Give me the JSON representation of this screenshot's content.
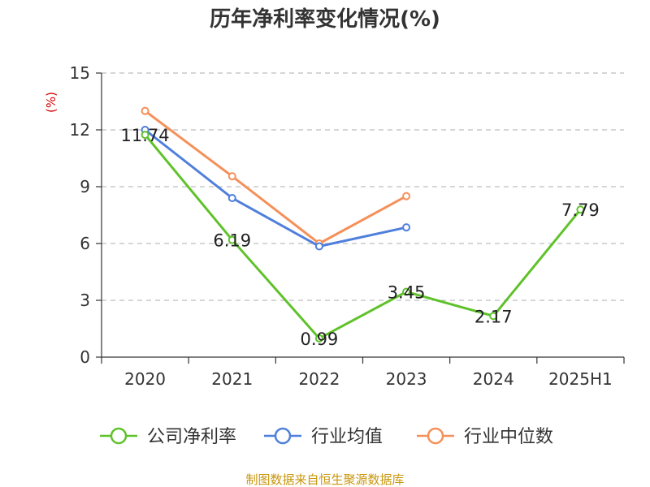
{
  "chart_data": {
    "type": "line",
    "title": "历年净利率变化情况(%)",
    "ylabel": "(%)",
    "xlabel": "",
    "categories": [
      "2020",
      "2021",
      "2022",
      "2023",
      "2024",
      "2025H1"
    ],
    "ylim": [
      0,
      15
    ],
    "yticks": [
      0,
      3,
      6,
      9,
      12,
      15
    ],
    "grid": true,
    "legend_position": "bottom",
    "series": [
      {
        "name": "公司净利率",
        "color": "#5fc22a",
        "values": [
          11.74,
          6.19,
          0.99,
          3.45,
          2.17,
          7.79
        ],
        "labels": [
          "11.74",
          "6.19",
          "0.99",
          "3.45",
          "2.17",
          "7.79"
        ]
      },
      {
        "name": "行业均值",
        "color": "#4f7fdc",
        "values": [
          12.0,
          8.4,
          5.85,
          6.85,
          null,
          null
        ]
      },
      {
        "name": "行业中位数",
        "color": "#f5905a",
        "values": [
          13.0,
          9.55,
          6.0,
          8.5,
          null,
          null
        ]
      }
    ]
  },
  "footer": {
    "source": "制图数据来自恒生聚源数据库"
  }
}
